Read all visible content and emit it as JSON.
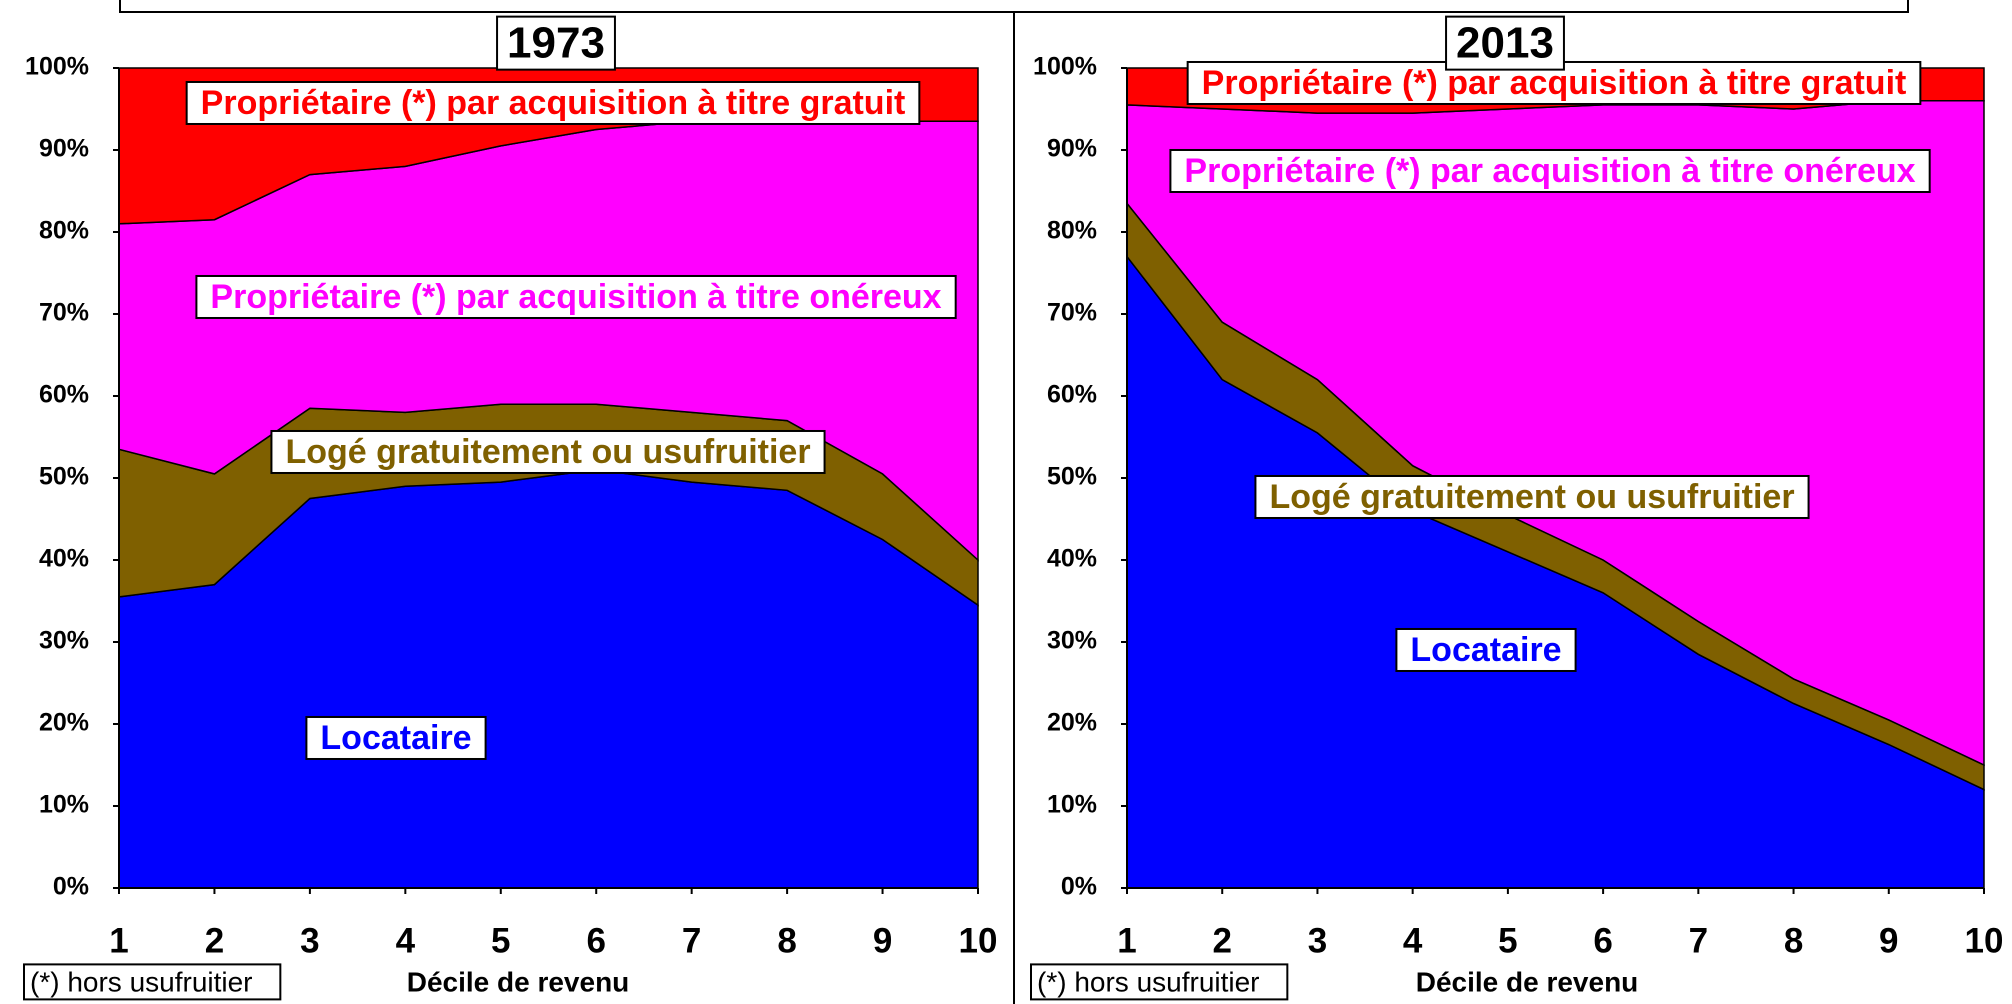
{
  "chart_data": [
    {
      "type": "area",
      "stacked": true,
      "title": "1973",
      "xlabel": "Décile de revenu",
      "note": "(*) hors usufruitier",
      "x": [
        1,
        2,
        3,
        4,
        5,
        6,
        7,
        8,
        9,
        10
      ],
      "xlim": [
        1,
        10
      ],
      "xticks": [
        1,
        2,
        3,
        4,
        5,
        6,
        7,
        8,
        9,
        10
      ],
      "ylim": [
        0,
        100
      ],
      "yticks": [
        {
          "value": 0,
          "label": "0%"
        },
        {
          "value": 10,
          "label": "10%"
        },
        {
          "value": 20,
          "label": "20%"
        },
        {
          "value": 30,
          "label": "30%"
        },
        {
          "value": 40,
          "label": "40%"
        },
        {
          "value": 50,
          "label": "50%"
        },
        {
          "value": 60,
          "label": "60%"
        },
        {
          "value": 70,
          "label": "70%"
        },
        {
          "value": 80,
          "label": "80%"
        },
        {
          "value": 90,
          "label": "90%"
        },
        {
          "value": 100,
          "label": "100%"
        }
      ],
      "series": [
        {
          "name": "Locataire",
          "color": "#0000ff",
          "values": [
            35.5,
            37,
            47.5,
            49,
            49.5,
            51,
            49.5,
            48.5,
            42.5,
            34.5
          ]
        },
        {
          "name": "Logé gratuitement ou usufruitier",
          "color": "#7f6000",
          "values": [
            18,
            13.5,
            11,
            9,
            9.5,
            8,
            8.5,
            8.5,
            8,
            5.5
          ]
        },
        {
          "name": "Propriétaire (*) par acquisition à titre onéreux",
          "color": "#ff00ff",
          "values": [
            27.5,
            31,
            28.5,
            30,
            31.5,
            33.5,
            35.5,
            36.5,
            43,
            53.5
          ]
        },
        {
          "name": "Propriétaire (*) par acquisition à titre gratuit",
          "color": "#ff0000",
          "values": [
            19,
            18.5,
            13,
            12,
            9.5,
            7.5,
            6.5,
            6.5,
            6.5,
            6.5
          ]
        }
      ]
    },
    {
      "type": "area",
      "stacked": true,
      "title": "2013",
      "xlabel": "Décile de revenu",
      "note": "(*) hors usufruitier",
      "x": [
        1,
        2,
        3,
        4,
        5,
        6,
        7,
        8,
        9,
        10
      ],
      "xlim": [
        1,
        10
      ],
      "xticks": [
        1,
        2,
        3,
        4,
        5,
        6,
        7,
        8,
        9,
        10
      ],
      "ylim": [
        0,
        100
      ],
      "yticks": [
        {
          "value": 0,
          "label": "0%"
        },
        {
          "value": 10,
          "label": "10%"
        },
        {
          "value": 20,
          "label": "20%"
        },
        {
          "value": 30,
          "label": "30%"
        },
        {
          "value": 40,
          "label": "40%"
        },
        {
          "value": 50,
          "label": "50%"
        },
        {
          "value": 60,
          "label": "60%"
        },
        {
          "value": 70,
          "label": "70%"
        },
        {
          "value": 80,
          "label": "80%"
        },
        {
          "value": 90,
          "label": "90%"
        },
        {
          "value": 100,
          "label": "100%"
        }
      ],
      "series": [
        {
          "name": "Locataire",
          "color": "#0000ff",
          "values": [
            77,
            62,
            55.5,
            46,
            41,
            36,
            28.5,
            22.5,
            17.5,
            12
          ]
        },
        {
          "name": "Logé gratuitement ou usufruitier",
          "color": "#7f6000",
          "values": [
            6.5,
            7,
            6.5,
            5.5,
            4.5,
            4,
            4,
            3,
            3,
            3
          ]
        },
        {
          "name": "Propriétaire (*) par acquisition à titre onéreux",
          "color": "#ff00ff",
          "values": [
            12,
            26,
            32.5,
            43,
            49.5,
            55.5,
            63,
            69.5,
            75.5,
            81
          ]
        },
        {
          "name": "Propriétaire (*) par acquisition à titre gratuit",
          "color": "#ff0000",
          "values": [
            4.5,
            5,
            5.5,
            5.5,
            5,
            4.5,
            4.5,
            5,
            4,
            4
          ]
        }
      ]
    }
  ]
}
